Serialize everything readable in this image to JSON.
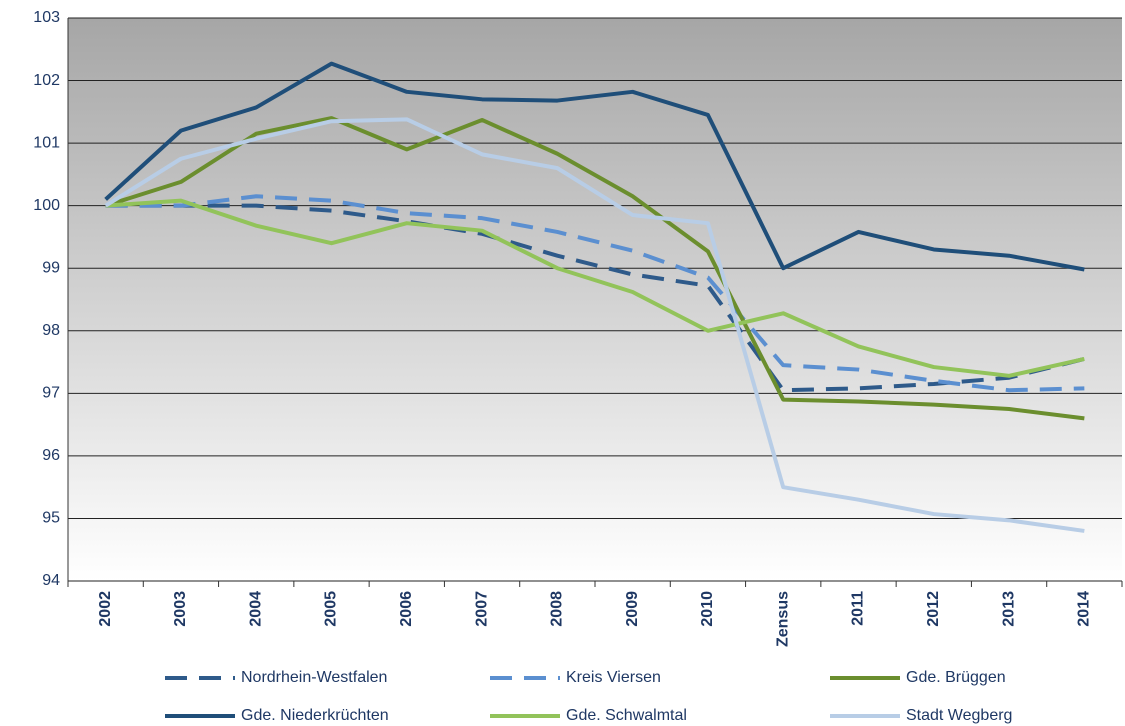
{
  "chart_data": {
    "type": "line",
    "categories": [
      "2002",
      "2003",
      "2004",
      "2005",
      "2006",
      "2007",
      "2008",
      "2009",
      "2010",
      "Zensus",
      "2011",
      "2012",
      "2013",
      "2014"
    ],
    "series": [
      {
        "name": "Nordrhein-Westfalen",
        "color": "#2e5a8a",
        "dashed": true,
        "values": [
          100,
          100.0,
          100.0,
          99.92,
          99.75,
          99.55,
          99.2,
          98.9,
          98.72,
          97.05,
          97.08,
          97.15,
          97.25,
          97.55
        ]
      },
      {
        "name": "Kreis Viersen",
        "color": "#5b8fd0",
        "dashed": true,
        "values": [
          100,
          100.0,
          100.15,
          100.08,
          99.88,
          99.8,
          99.58,
          99.28,
          98.85,
          97.45,
          97.38,
          97.2,
          97.05,
          97.08
        ]
      },
      {
        "name": "Gde. Brüggen",
        "color": "#6b8e2e",
        "dashed": false,
        "values": [
          100,
          100.38,
          101.15,
          101.4,
          100.9,
          101.37,
          100.83,
          100.15,
          99.27,
          96.9,
          96.87,
          96.82,
          96.75,
          96.6
        ]
      },
      {
        "name": "Gde. Niederkrüchten",
        "color": "#1f4e79",
        "dashed": false,
        "values": [
          100.1,
          101.2,
          101.57,
          102.27,
          101.82,
          101.7,
          101.68,
          101.82,
          101.45,
          99.0,
          99.58,
          99.3,
          99.2,
          98.98
        ]
      },
      {
        "name": "Gde. Schwalmtal",
        "color": "#92c35a",
        "dashed": false,
        "values": [
          100,
          100.08,
          99.68,
          99.4,
          99.72,
          99.6,
          99.0,
          98.62,
          98.0,
          98.28,
          97.75,
          97.42,
          97.28,
          97.55
        ]
      },
      {
        "name": "Stadt Wegberg",
        "color": "#b8cde6",
        "dashed": false,
        "values": [
          100,
          100.75,
          101.07,
          101.35,
          101.38,
          100.82,
          100.6,
          99.85,
          99.72,
          95.5,
          95.3,
          95.07,
          94.97,
          94.8
        ]
      }
    ],
    "ylim": [
      94,
      103
    ],
    "yticks": [
      94,
      95,
      96,
      97,
      98,
      99,
      100,
      101,
      102,
      103
    ],
    "grid": true,
    "legend": "bottom"
  }
}
